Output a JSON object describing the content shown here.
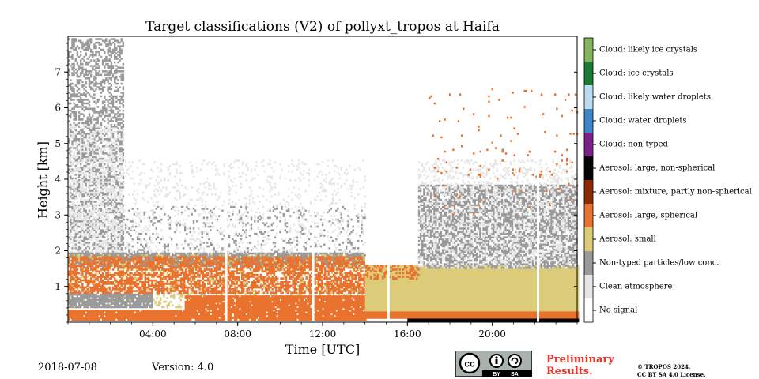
{
  "chart_data": {
    "type": "heatmap",
    "title": "Target classifications (V2) of pollyxt_tropos at Haifa",
    "xlabel": "Time [UTC]",
    "ylabel": "Height [km]",
    "xlim": [
      0,
      24
    ],
    "ylim": [
      0,
      8
    ],
    "x_ticks": [
      "04:00",
      "08:00",
      "12:00",
      "16:00",
      "20:00"
    ],
    "x_tick_values": [
      4,
      8,
      12,
      16,
      20
    ],
    "y_ticks": [
      "1",
      "2",
      "3",
      "4",
      "5",
      "6",
      "7"
    ],
    "y_tick_values": [
      1,
      2,
      3,
      4,
      5,
      6,
      7
    ],
    "classes": [
      {
        "label": "No signal",
        "color": "#ffffff"
      },
      {
        "label": "Clean atmosphere",
        "color": "#e6e6e6"
      },
      {
        "label": "Non-typed particles/low conc.",
        "color": "#9a9a9a"
      },
      {
        "label": "Aerosol: small",
        "color": "#dccb78"
      },
      {
        "label": "Aerosol: large, spherical",
        "color": "#e8722e"
      },
      {
        "label": "Aerosol: mixture, partly non-spherical",
        "color": "#8c2a05"
      },
      {
        "label": "Aerosol: large, non-spherical",
        "color": "#050505"
      },
      {
        "label": "Cloud: non-typed",
        "color": "#7a2287"
      },
      {
        "label": "Cloud: water droplets",
        "color": "#3f86c6"
      },
      {
        "label": "Cloud: likely water droplets",
        "color": "#bcdcf2"
      },
      {
        "label": "Cloud: ice crystals",
        "color": "#1b7a35"
      },
      {
        "label": "Cloud: likely ice crystals",
        "color": "#86b35f"
      }
    ],
    "regions": [
      {
        "class": 2,
        "x": [
          0,
          2.6
        ],
        "y": [
          1.8,
          7.9
        ],
        "density": 0.45
      },
      {
        "class": 1,
        "x": [
          0,
          2.6
        ],
        "y": [
          1.9,
          5.5
        ],
        "density": 0.35
      },
      {
        "class": 2,
        "x": [
          2.6,
          14
        ],
        "y": [
          1.85,
          3.2
        ],
        "density": 0.12
      },
      {
        "class": 1,
        "x": [
          2.6,
          14
        ],
        "y": [
          1.9,
          4.5
        ],
        "density": 0.12
      },
      {
        "class": 2,
        "x": [
          0,
          14
        ],
        "y": [
          1.55,
          1.95
        ],
        "density": 0.85
      },
      {
        "class": 3,
        "x": [
          0,
          14
        ],
        "y": [
          0.4,
          1.9
        ],
        "density": 0.25
      },
      {
        "class": 4,
        "x": [
          0,
          14
        ],
        "y": [
          0.8,
          1.85
        ],
        "density": 0.6
      },
      {
        "class": 2,
        "x": [
          0,
          4
        ],
        "y": [
          0.4,
          0.8
        ],
        "density": 0.9
      },
      {
        "class": 4,
        "x": [
          5.5,
          14
        ],
        "y": [
          0.05,
          0.75
        ],
        "density": 0.95
      },
      {
        "class": 4,
        "x": [
          0,
          5.5
        ],
        "y": [
          0.05,
          0.35
        ],
        "density": 0.95
      },
      {
        "class": 3,
        "x": [
          14,
          24
        ],
        "y": [
          0.3,
          1.6
        ],
        "density": 1.0
      },
      {
        "class": 4,
        "x": [
          14,
          16.5
        ],
        "y": [
          1.2,
          1.6
        ],
        "density": 0.4
      },
      {
        "class": 2,
        "x": [
          16.5,
          24
        ],
        "y": [
          1.5,
          3.8
        ],
        "density": 0.6
      },
      {
        "class": 1,
        "x": [
          16.5,
          24
        ],
        "y": [
          1.5,
          4.5
        ],
        "density": 0.25
      },
      {
        "class": 4,
        "x": [
          17,
          24
        ],
        "y": [
          3.0,
          6.5
        ],
        "density": 0.02
      },
      {
        "class": 4,
        "x": [
          14,
          24
        ],
        "y": [
          0.1,
          0.3
        ],
        "density": 1.0
      },
      {
        "class": 6,
        "x": [
          16,
          24
        ],
        "y": [
          0.0,
          0.08
        ],
        "density": 1.0
      }
    ]
  },
  "footer": {
    "date": "2018-07-08",
    "version": "Version: 4.0",
    "cc_label": "cc",
    "cc_by": "BY",
    "cc_sa": "SA",
    "preliminary": "Preliminary Results.",
    "copyright_line1": "© TROPOS 2024.",
    "copyright_line2": "CC BY SA 4.0 License."
  }
}
